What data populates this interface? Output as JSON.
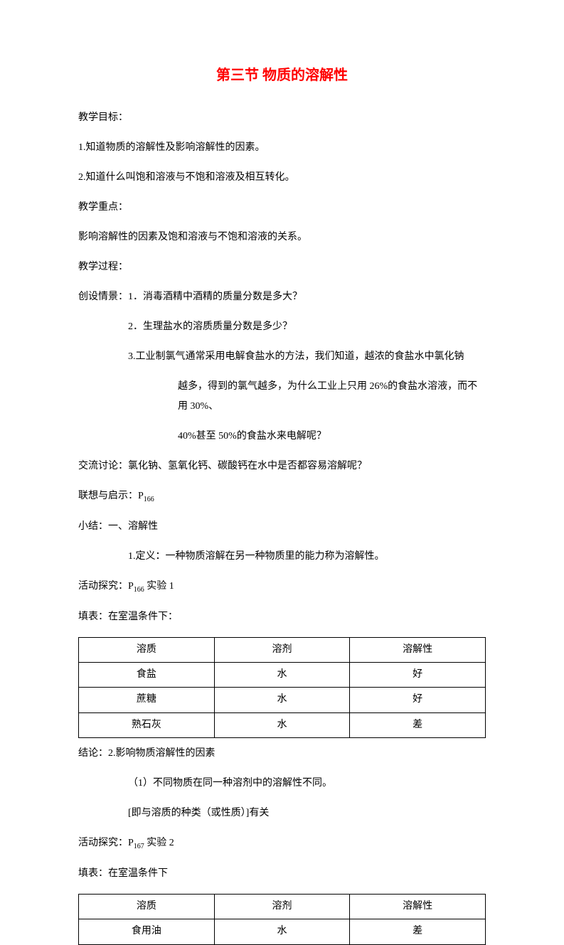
{
  "title": "第三节 物质的溶解性",
  "lines": {
    "l1": "教学目标：",
    "l2": "1.知道物质的溶解性及影响溶解性的因素。",
    "l3": "2.知道什么叫饱和溶液与不饱和溶液及相互转化。",
    "l4": "教学重点：",
    "l5": "影响溶解性的因素及饱和溶液与不饱和溶液的关系。",
    "l6": "教学过程：",
    "l7": "创设情景：1．消毒酒精中酒精的质量分数是多大？",
    "l8": "2．生理盐水的溶质质量分数是多少？",
    "l9": "3.工业制氯气通常采用电解食盐水的方法，我们知道，越浓的食盐水中氯化钠",
    "l10": "越多，得到的氯气越多，为什么工业上只用 26%的食盐水溶液，而不用 30%、",
    "l11": "40%甚至 50%的食盐水来电解呢？",
    "l12": "交流讨论：氯化钠、氢氧化钙、碳酸钙在水中是否都容易溶解呢？",
    "l13a": "联想与启示：P",
    "l13b": "166",
    "l14": "小结：一、溶解性",
    "l15": "1.定义：一种物质溶解在另一种物质里的能力称为溶解性。",
    "l16a": "活动探究：P",
    "l16b": "166",
    "l16c": " 实验 1",
    "l17": "填表：在室温条件下：",
    "l18": "结论：2.影响物质溶解性的因素",
    "l19": "（1）不同物质在同一种溶剂中的溶解性不同。",
    "l20": "[即与溶质的种类（或性质）]有关",
    "l21a": "活动探究：P",
    "l21b": "167",
    "l21c": " 实验 2",
    "l22": "填表：在室温条件下"
  },
  "table1": {
    "headers": [
      "溶质",
      "溶剂",
      "溶解性"
    ],
    "rows": [
      [
        "食盐",
        "水",
        "好"
      ],
      [
        "蔗糖",
        "水",
        "好"
      ],
      [
        "熟石灰",
        "水",
        "差"
      ]
    ]
  },
  "table2": {
    "headers": [
      "溶质",
      "溶剂",
      "溶解性"
    ],
    "rows": [
      [
        "食用油",
        "水",
        "差"
      ]
    ]
  }
}
